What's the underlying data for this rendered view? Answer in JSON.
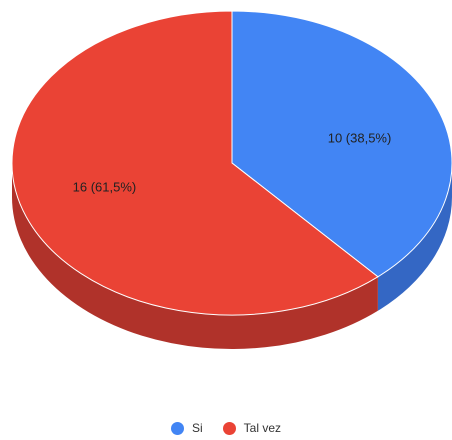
{
  "chart_data": {
    "type": "pie",
    "style": "3d",
    "categories": [
      "Si",
      "Tal vez"
    ],
    "values": [
      10,
      16
    ],
    "data_labels": [
      "10 (38,5%)",
      "16 (61,5%)"
    ],
    "colors": {
      "Si": "#4285f4",
      "Tal vez": "#ea4335"
    },
    "side_colors": {
      "Si": "#3467c4",
      "Tal vez": "#b0322a"
    },
    "legend_position": "bottom"
  }
}
